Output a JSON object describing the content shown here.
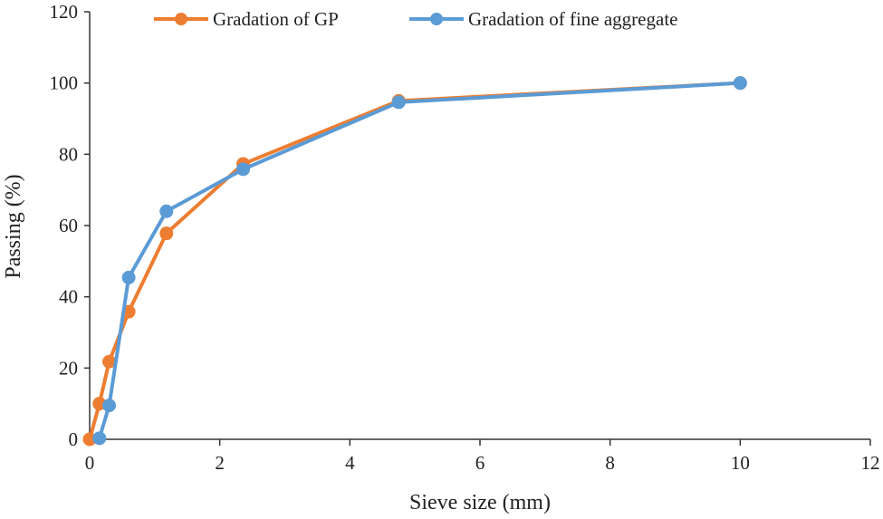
{
  "chart_data": {
    "type": "line",
    "title": "",
    "xlabel": "Sieve size (mm)",
    "ylabel": "Passing (%)",
    "xlim": [
      0,
      12
    ],
    "ylim": [
      0,
      120
    ],
    "xticks": [
      0,
      2,
      4,
      6,
      8,
      10,
      12
    ],
    "yticks": [
      0,
      20,
      40,
      60,
      80,
      100,
      120
    ],
    "grid": false,
    "legend_position": "top",
    "series": [
      {
        "name": "Gradation of GP",
        "color": "#ED7D31",
        "x": [
          0,
          0.15,
          0.3,
          0.6,
          1.18,
          2.36,
          4.75,
          10
        ],
        "y": [
          0,
          10,
          21.8,
          35.8,
          57.8,
          77.3,
          95,
          100
        ]
      },
      {
        "name": "Gradation of fine aggregate",
        "color": "#5B9BD5",
        "x": [
          0.15,
          0.3,
          0.6,
          1.18,
          2.36,
          4.75,
          10
        ],
        "y": [
          0.3,
          9.5,
          45.4,
          64,
          75.8,
          94.6,
          100
        ]
      }
    ]
  }
}
